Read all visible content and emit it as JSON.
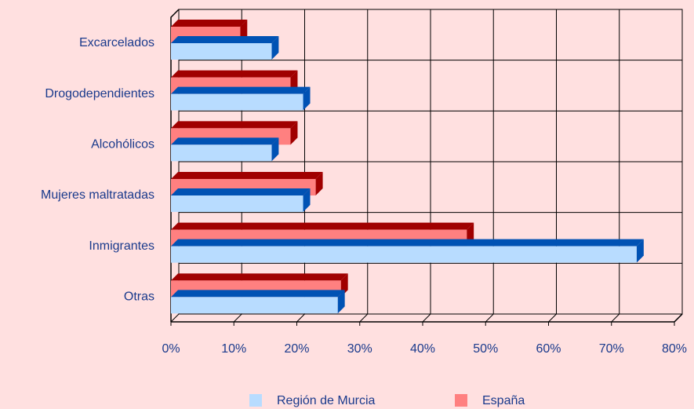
{
  "chart_data": {
    "type": "bar3d-horizontal",
    "categories": [
      "Excarcelados",
      "Drogodependientes",
      "Alcohólicos",
      "Mujeres maltratadas",
      "Inmigrantes",
      "Otras"
    ],
    "series": [
      {
        "name": "Región de Murcia",
        "color": "#b8dcff",
        "side_color": "#0052b4",
        "values": [
          16,
          21,
          16,
          21,
          74,
          26.5
        ]
      },
      {
        "name": "España",
        "color": "#ff8080",
        "side_color": "#a00000",
        "values": [
          11,
          19,
          19,
          23,
          47,
          27
        ]
      }
    ],
    "xlim": [
      0,
      80
    ],
    "xticks": [
      {
        "value": 0,
        "label": "0%"
      },
      {
        "value": 10,
        "label": "10%"
      },
      {
        "value": 20,
        "label": "20%"
      },
      {
        "value": 30,
        "label": "30%"
      },
      {
        "value": 40,
        "label": "40%"
      },
      {
        "value": 50,
        "label": "50%"
      },
      {
        "value": 60,
        "label": "60%"
      },
      {
        "value": 70,
        "label": "70%"
      },
      {
        "value": 80,
        "label": "80%"
      }
    ],
    "grid": true,
    "legend": "bottom"
  }
}
